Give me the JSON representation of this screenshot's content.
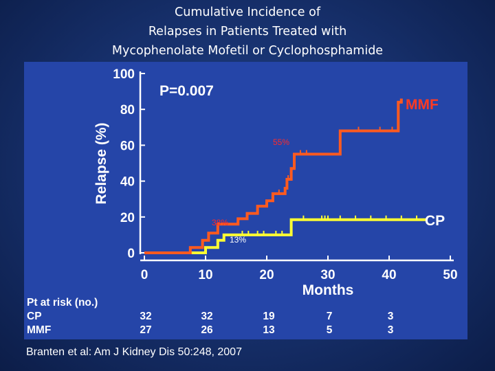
{
  "title_lines": [
    "Cumulative Incidence of",
    "Relapses in Patients Treated with",
    "Mycophenolate Mofetil or Cyclophosphamide"
  ],
  "citation": "Branten et al: Am J Kidney Dis 50:248, 2007",
  "colors": {
    "background": "#162f6a",
    "panel": "#2545a8",
    "mmf_line": "#ff5a1f",
    "cp_line": "#ffff33",
    "annotation_red": "#ff2a2a",
    "mmf_label": "#ff3b22",
    "cp_label": "#ffffff",
    "axis": "#ffffff"
  },
  "chart_data": {
    "type": "line",
    "step": true,
    "xlabel": "Months",
    "ylabel": "Relapse (%)",
    "xlim": [
      0,
      50
    ],
    "ylim": [
      0,
      100
    ],
    "x_ticks": [
      0,
      10,
      20,
      30,
      40,
      50
    ],
    "y_ticks": [
      0,
      20,
      40,
      60,
      80,
      100
    ],
    "grid": false,
    "p_value": "P=0.007",
    "series": [
      {
        "name": "MMF",
        "points": [
          [
            0,
            0
          ],
          [
            7.5,
            0
          ],
          [
            7.5,
            3
          ],
          [
            9.5,
            3
          ],
          [
            9.5,
            7
          ],
          [
            10.5,
            7
          ],
          [
            10.5,
            11
          ],
          [
            12,
            11
          ],
          [
            12,
            16
          ],
          [
            15.3,
            16
          ],
          [
            15.3,
            19
          ],
          [
            16.8,
            19
          ],
          [
            16.8,
            22
          ],
          [
            18.5,
            22
          ],
          [
            18.5,
            26
          ],
          [
            20,
            26
          ],
          [
            20,
            29
          ],
          [
            21,
            29
          ],
          [
            21,
            33
          ],
          [
            22,
            33
          ],
          [
            22,
            33
          ],
          [
            23,
            33
          ],
          [
            23,
            36
          ],
          [
            23.3,
            36
          ],
          [
            23.3,
            41
          ],
          [
            24,
            41
          ],
          [
            24,
            47
          ],
          [
            24.5,
            47
          ],
          [
            24.5,
            55
          ],
          [
            32,
            55
          ],
          [
            32,
            68
          ],
          [
            41.5,
            68
          ],
          [
            41.5,
            84
          ],
          [
            42,
            84
          ],
          [
            42,
            86
          ]
        ],
        "censored_x": [
          22,
          23.5,
          25.5,
          26.5,
          35,
          38.5,
          40.5
        ],
        "annotations": [
          {
            "text": "38%",
            "x": 12,
            "y": 16
          },
          {
            "text": "55%",
            "x": 24.5,
            "y": 55
          }
        ]
      },
      {
        "name": "CP",
        "points": [
          [
            0,
            0
          ],
          [
            10,
            0
          ],
          [
            10,
            3
          ],
          [
            12,
            3
          ],
          [
            12,
            7
          ],
          [
            13,
            7
          ],
          [
            13,
            10
          ],
          [
            24,
            10
          ],
          [
            24,
            18.5
          ],
          [
            46,
            18.5
          ]
        ],
        "censored_x": [
          16,
          17,
          18.5,
          19.5,
          21.5,
          22.5,
          26,
          29,
          29.5,
          30,
          32,
          34.5,
          37,
          39.5,
          42,
          44.5
        ],
        "annotations": [
          {
            "text": "13%",
            "x": 13,
            "y": 10
          }
        ]
      }
    ],
    "risk_table": {
      "header": "Pt at risk (no.)",
      "rows": [
        {
          "label": "CP",
          "values": [
            "32",
            "32",
            "19",
            "7",
            "3"
          ]
        },
        {
          "label": "MMF",
          "values": [
            "27",
            "26",
            "13",
            "5",
            "3"
          ]
        }
      ]
    }
  }
}
